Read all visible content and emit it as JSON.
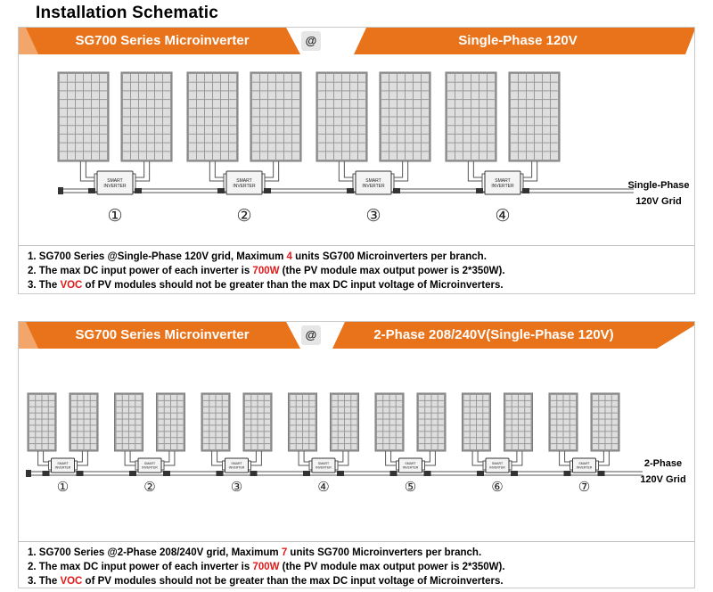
{
  "title": "Installation Schematic",
  "colors": {
    "orange": "#e8731a",
    "orange_light": "#f2a66b",
    "panel_frame": "#9a9a9a",
    "panel_cell": "#dcdcdc",
    "red": "#e11a1a"
  },
  "inverter_text": "SMART INVERTER",
  "section1": {
    "banner_left": "SG700 Series Microinverter",
    "banner_at": "@",
    "banner_right": "Single-Phase 120V",
    "unit_numbers": [
      "①",
      "②",
      "③",
      "④"
    ],
    "grid_label_line1": "Single-Phase",
    "grid_label_line2": "120V Grid",
    "notes": [
      {
        "pre": "1. SG700 Series @Single-Phase 120V grid, Maximum ",
        "red": "4",
        "post": " units SG700 Microinverters  per branch."
      },
      {
        "pre": "2. The max DC input power of each inverter is ",
        "red": "700W",
        "post": " (the PV module max output power is 2*350W)."
      },
      {
        "pre": "3. The ",
        "red": "VOC",
        "post": " of PV modules should not be greater than the max DC input voltage of Microinverters."
      }
    ]
  },
  "section2": {
    "banner_left": "SG700 Series Microinverter",
    "banner_at": "@",
    "banner_right": "2-Phase 208/240V(Single-Phase 120V)",
    "unit_numbers": [
      "①",
      "②",
      "③",
      "④",
      "⑤",
      "⑥",
      "⑦"
    ],
    "grid_label_line1": "2-Phase",
    "grid_label_line2": "120V Grid",
    "notes": [
      {
        "pre": "1. SG700 Series @2-Phase 208/240V grid, Maximum ",
        "red": "7",
        "post": " units SG700 Microinverters per branch."
      },
      {
        "pre": "2. The max DC input power of each inverter is ",
        "red": "700W",
        "post": " (the PV module max output power is 2*350W)."
      },
      {
        "pre": "3. The ",
        "red": "VOC",
        "post": " of PV modules should not be greater than the max DC input voltage of Microinverters."
      }
    ]
  }
}
